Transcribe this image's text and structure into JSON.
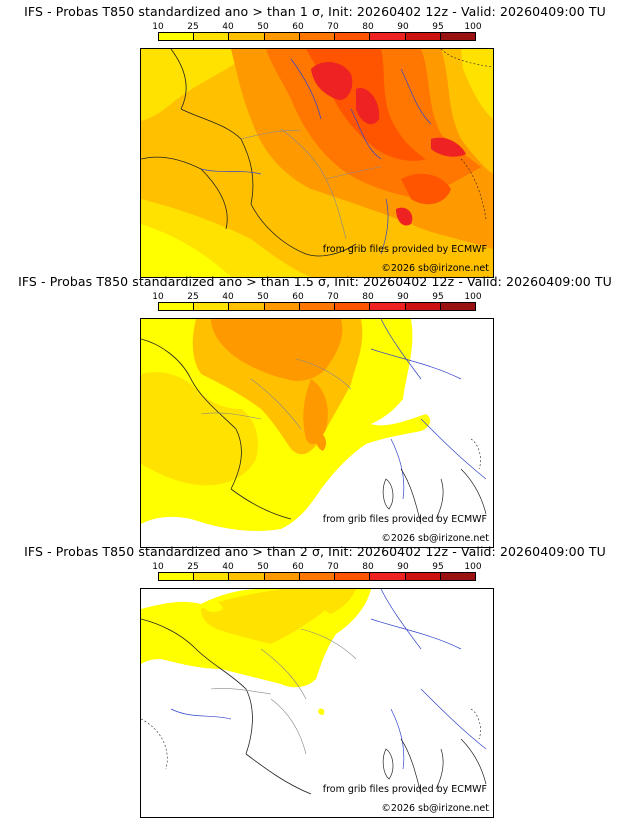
{
  "legend": {
    "labels": [
      "10",
      "25",
      "40",
      "50",
      "60",
      "70",
      "80",
      "90",
      "95",
      "100"
    ],
    "colors": [
      "#ffff00",
      "#ffe200",
      "#ffc000",
      "#ff9900",
      "#ff7700",
      "#ff5500",
      "#ee2222",
      "#cc1111",
      "#991111",
      "#661111"
    ]
  },
  "panels": [
    {
      "title": "IFS - Probas T850  standardized ano > than 1 σ, Init: 20260402 12z - Valid: 20260409:00 TU",
      "source_credit": "from grib files provided by ECMWF",
      "copyright": "©2026 sb@irizone.net"
    },
    {
      "title": "IFS - Probas T850  standardized ano > than 1.5 σ, Init: 20260402 12z - Valid: 20260409:00 TU",
      "source_credit": "from grib files provided by ECMWF",
      "copyright": "©2026 sb@irizone.net"
    },
    {
      "title": "IFS - Probas T850  standardized ano > than 2 σ, Init: 20260402 12z - Valid: 20260409:00 TU",
      "source_credit": "from grib files provided by ECMWF",
      "copyright": "©2026 sb@irizone.net"
    }
  ]
}
